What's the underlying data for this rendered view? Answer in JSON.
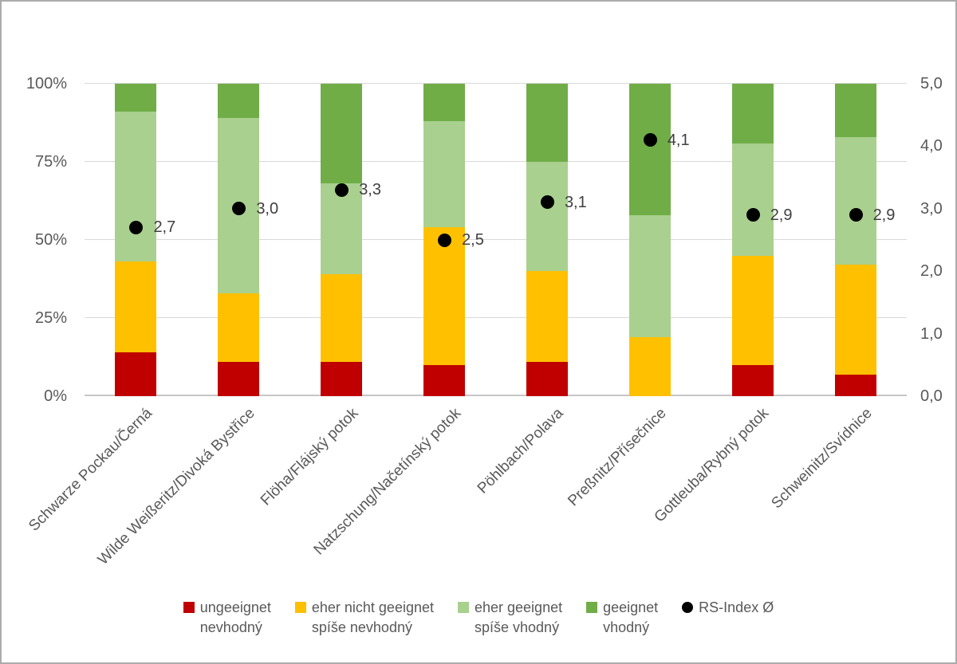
{
  "chart_data": {
    "type": "bar",
    "stacked": true,
    "orientation": "vertical",
    "grid": true,
    "legend_position": "bottom",
    "categories": [
      "Schwarze Pockau/Černá",
      "Wilde Weißeritz/Divoká Bystřice",
      "Flöha/Flájský potok",
      "Natzschung/Načetínský potok",
      "Pöhlbach/Polava",
      "Preßnitz/Přísečnice",
      "Gottleuba/Rybný potok",
      "Schweinitz/Svídnice"
    ],
    "series": [
      {
        "key": "ungeeignet",
        "legend_lines": [
          "ungeeignet",
          "nevhodný"
        ],
        "color": "#C00000",
        "values": [
          14,
          11,
          11,
          10,
          11,
          0,
          10,
          7
        ]
      },
      {
        "key": "eher-nicht-geeignet",
        "legend_lines": [
          "eher nicht geeignet",
          "spíše nevhodný"
        ],
        "color": "#FFC000",
        "values": [
          29,
          22,
          28,
          44,
          29,
          19,
          35,
          35
        ]
      },
      {
        "key": "eher-geeignet",
        "legend_lines": [
          "eher geeignet",
          "spíše vhodný"
        ],
        "color": "#A9D08E",
        "values": [
          48,
          56,
          29,
          34,
          35,
          39,
          36,
          41
        ]
      },
      {
        "key": "geeignet",
        "legend_lines": [
          "geeignet",
          "vhodný"
        ],
        "color": "#70AD47",
        "values": [
          9,
          11,
          32,
          12,
          25,
          42,
          19,
          17
        ]
      }
    ],
    "dot_series": {
      "key": "rs-index",
      "legend_lines": [
        "RS-Index Ø"
      ],
      "color": "#000000",
      "axis": "right",
      "values": [
        2.7,
        3.0,
        3.3,
        2.5,
        3.1,
        4.1,
        2.9,
        2.9
      ],
      "labels": [
        "2,7",
        "3,0",
        "3,3",
        "2,5",
        "3,1",
        "4,1",
        "2,9",
        "2,9"
      ]
    },
    "left_axis": {
      "min": 0,
      "max": 100,
      "unit": "%",
      "ticks": [
        {
          "value": 100,
          "label": "100%"
        },
        {
          "value": 75,
          "label": "75%"
        },
        {
          "value": 50,
          "label": "50%"
        },
        {
          "value": 25,
          "label": "25%"
        },
        {
          "value": 0,
          "label": "0%"
        }
      ]
    },
    "right_axis": {
      "min": 0,
      "max": 5,
      "ticks": [
        {
          "value": 5,
          "label": "5,0"
        },
        {
          "value": 4,
          "label": "4,0"
        },
        {
          "value": 3,
          "label": "3,0"
        },
        {
          "value": 2,
          "label": "2,0"
        },
        {
          "value": 1,
          "label": "1,0"
        },
        {
          "value": 0,
          "label": "0,0"
        }
      ]
    },
    "gridline_percents": [
      0,
      25,
      50,
      75,
      100
    ]
  },
  "colors": {
    "gridline": "#d9d9d9",
    "baseline": "#c6c6c6",
    "axis_text": "#595959",
    "dot_label_text": "#404040",
    "frame_border": "#ababab"
  }
}
